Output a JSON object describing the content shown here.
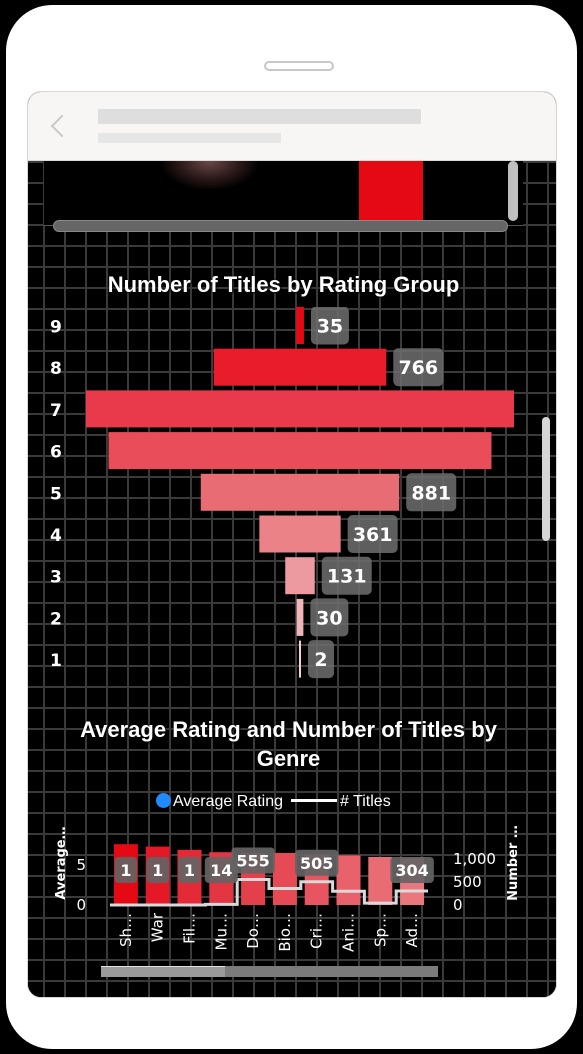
{
  "chart_data": [
    {
      "type": "bar",
      "orientation": "horizontal-funnel",
      "title": "Number of Titles by Rating Group",
      "categories": [
        "9",
        "8",
        "7",
        "6",
        "5",
        "4",
        "3",
        "2",
        "1"
      ],
      "values": [
        35,
        766,
        1900,
        1700,
        881,
        361,
        131,
        30,
        2
      ],
      "data_labels": [
        "35",
        "766",
        "",
        "",
        "881",
        "361",
        "131",
        "30",
        "2"
      ],
      "colors": [
        "#e50914",
        "#e81c2b",
        "#e83a4a",
        "#e84d59",
        "#e86c74",
        "#ea8288",
        "#ec9aa0",
        "#efb5b8",
        "#f4d2d4"
      ],
      "xlim": [
        0,
        1900
      ]
    },
    {
      "type": "bar",
      "title": "Average Rating and Number of Titles by Genre",
      "legend": {
        "bar_series": "Average Rating",
        "line_series": "# Titles"
      },
      "categories": [
        "Sh…",
        "War",
        "Fil…",
        "Mu…",
        "Do…",
        "Bio…",
        "Cri…",
        "Ani…",
        "Sp…",
        "Ad…"
      ],
      "series": [
        {
          "name": "Average Rating",
          "axis": "left",
          "values": [
            7.6,
            7.3,
            6.9,
            6.6,
            6.5,
            6.5,
            6.3,
            6.2,
            6.0,
            5.9
          ]
        },
        {
          "name": "# Titles",
          "axis": "right",
          "values": [
            1,
            1,
            1,
            14,
            555,
            360,
            505,
            300,
            40,
            304
          ]
        }
      ],
      "data_labels": [
        {
          "category": "Sh…",
          "text": "1"
        },
        {
          "category": "War",
          "text": "1"
        },
        {
          "category": "Fil…",
          "text": "1"
        },
        {
          "category": "Mu…",
          "text": "14"
        },
        {
          "category": "Do…",
          "text": "555"
        },
        {
          "category": "Cri…",
          "text": "505"
        },
        {
          "category": "Ad…",
          "text": "304"
        }
      ],
      "y_left": {
        "label": "Average…",
        "ticks": [
          "5",
          "0"
        ],
        "range": [
          0,
          8
        ]
      },
      "y_right": {
        "label": "Number …",
        "ticks": [
          "1,000",
          "500",
          "0"
        ],
        "range": [
          0,
          1000
        ]
      }
    }
  ],
  "colors": {
    "accent": "#e50914",
    "legend_dot": "#1f8bff",
    "label_bg": "#555555"
  }
}
